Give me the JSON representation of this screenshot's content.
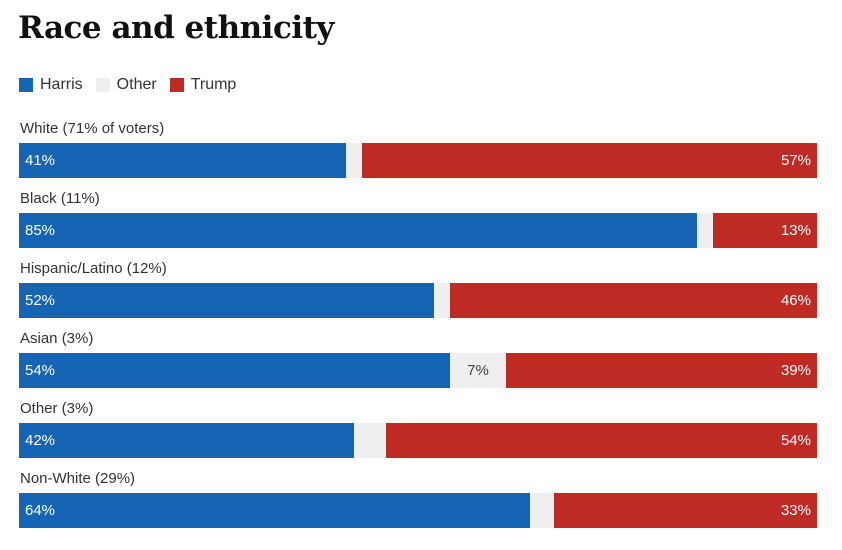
{
  "chart_data": {
    "type": "bar",
    "stacked": true,
    "orientation": "horizontal",
    "title": "Race and ethnicity",
    "legend": [
      "Harris",
      "Other",
      "Trump"
    ],
    "categories": [
      "White (71% of voters)",
      "Black (11%)",
      "Hispanic/Latino (12%)",
      "Asian (3%)",
      "Other (3%)",
      "Non-White (29%)"
    ],
    "series": [
      {
        "name": "Harris",
        "color": "#1565b4",
        "values": [
          41,
          85,
          52,
          54,
          42,
          64
        ],
        "labels": [
          "41%",
          "85%",
          "52%",
          "54%",
          "42%",
          "64%"
        ]
      },
      {
        "name": "Other",
        "color": "#efefef",
        "values": [
          2,
          2,
          2,
          7,
          4,
          3
        ],
        "labels": [
          "",
          "",
          "",
          "7%",
          "",
          ""
        ]
      },
      {
        "name": "Trump",
        "color": "#be2b25",
        "values": [
          57,
          13,
          46,
          39,
          54,
          33
        ],
        "labels": [
          "57%",
          "13%",
          "46%",
          "39%",
          "54%",
          "33%"
        ]
      }
    ],
    "xlim": [
      0,
      100
    ]
  }
}
